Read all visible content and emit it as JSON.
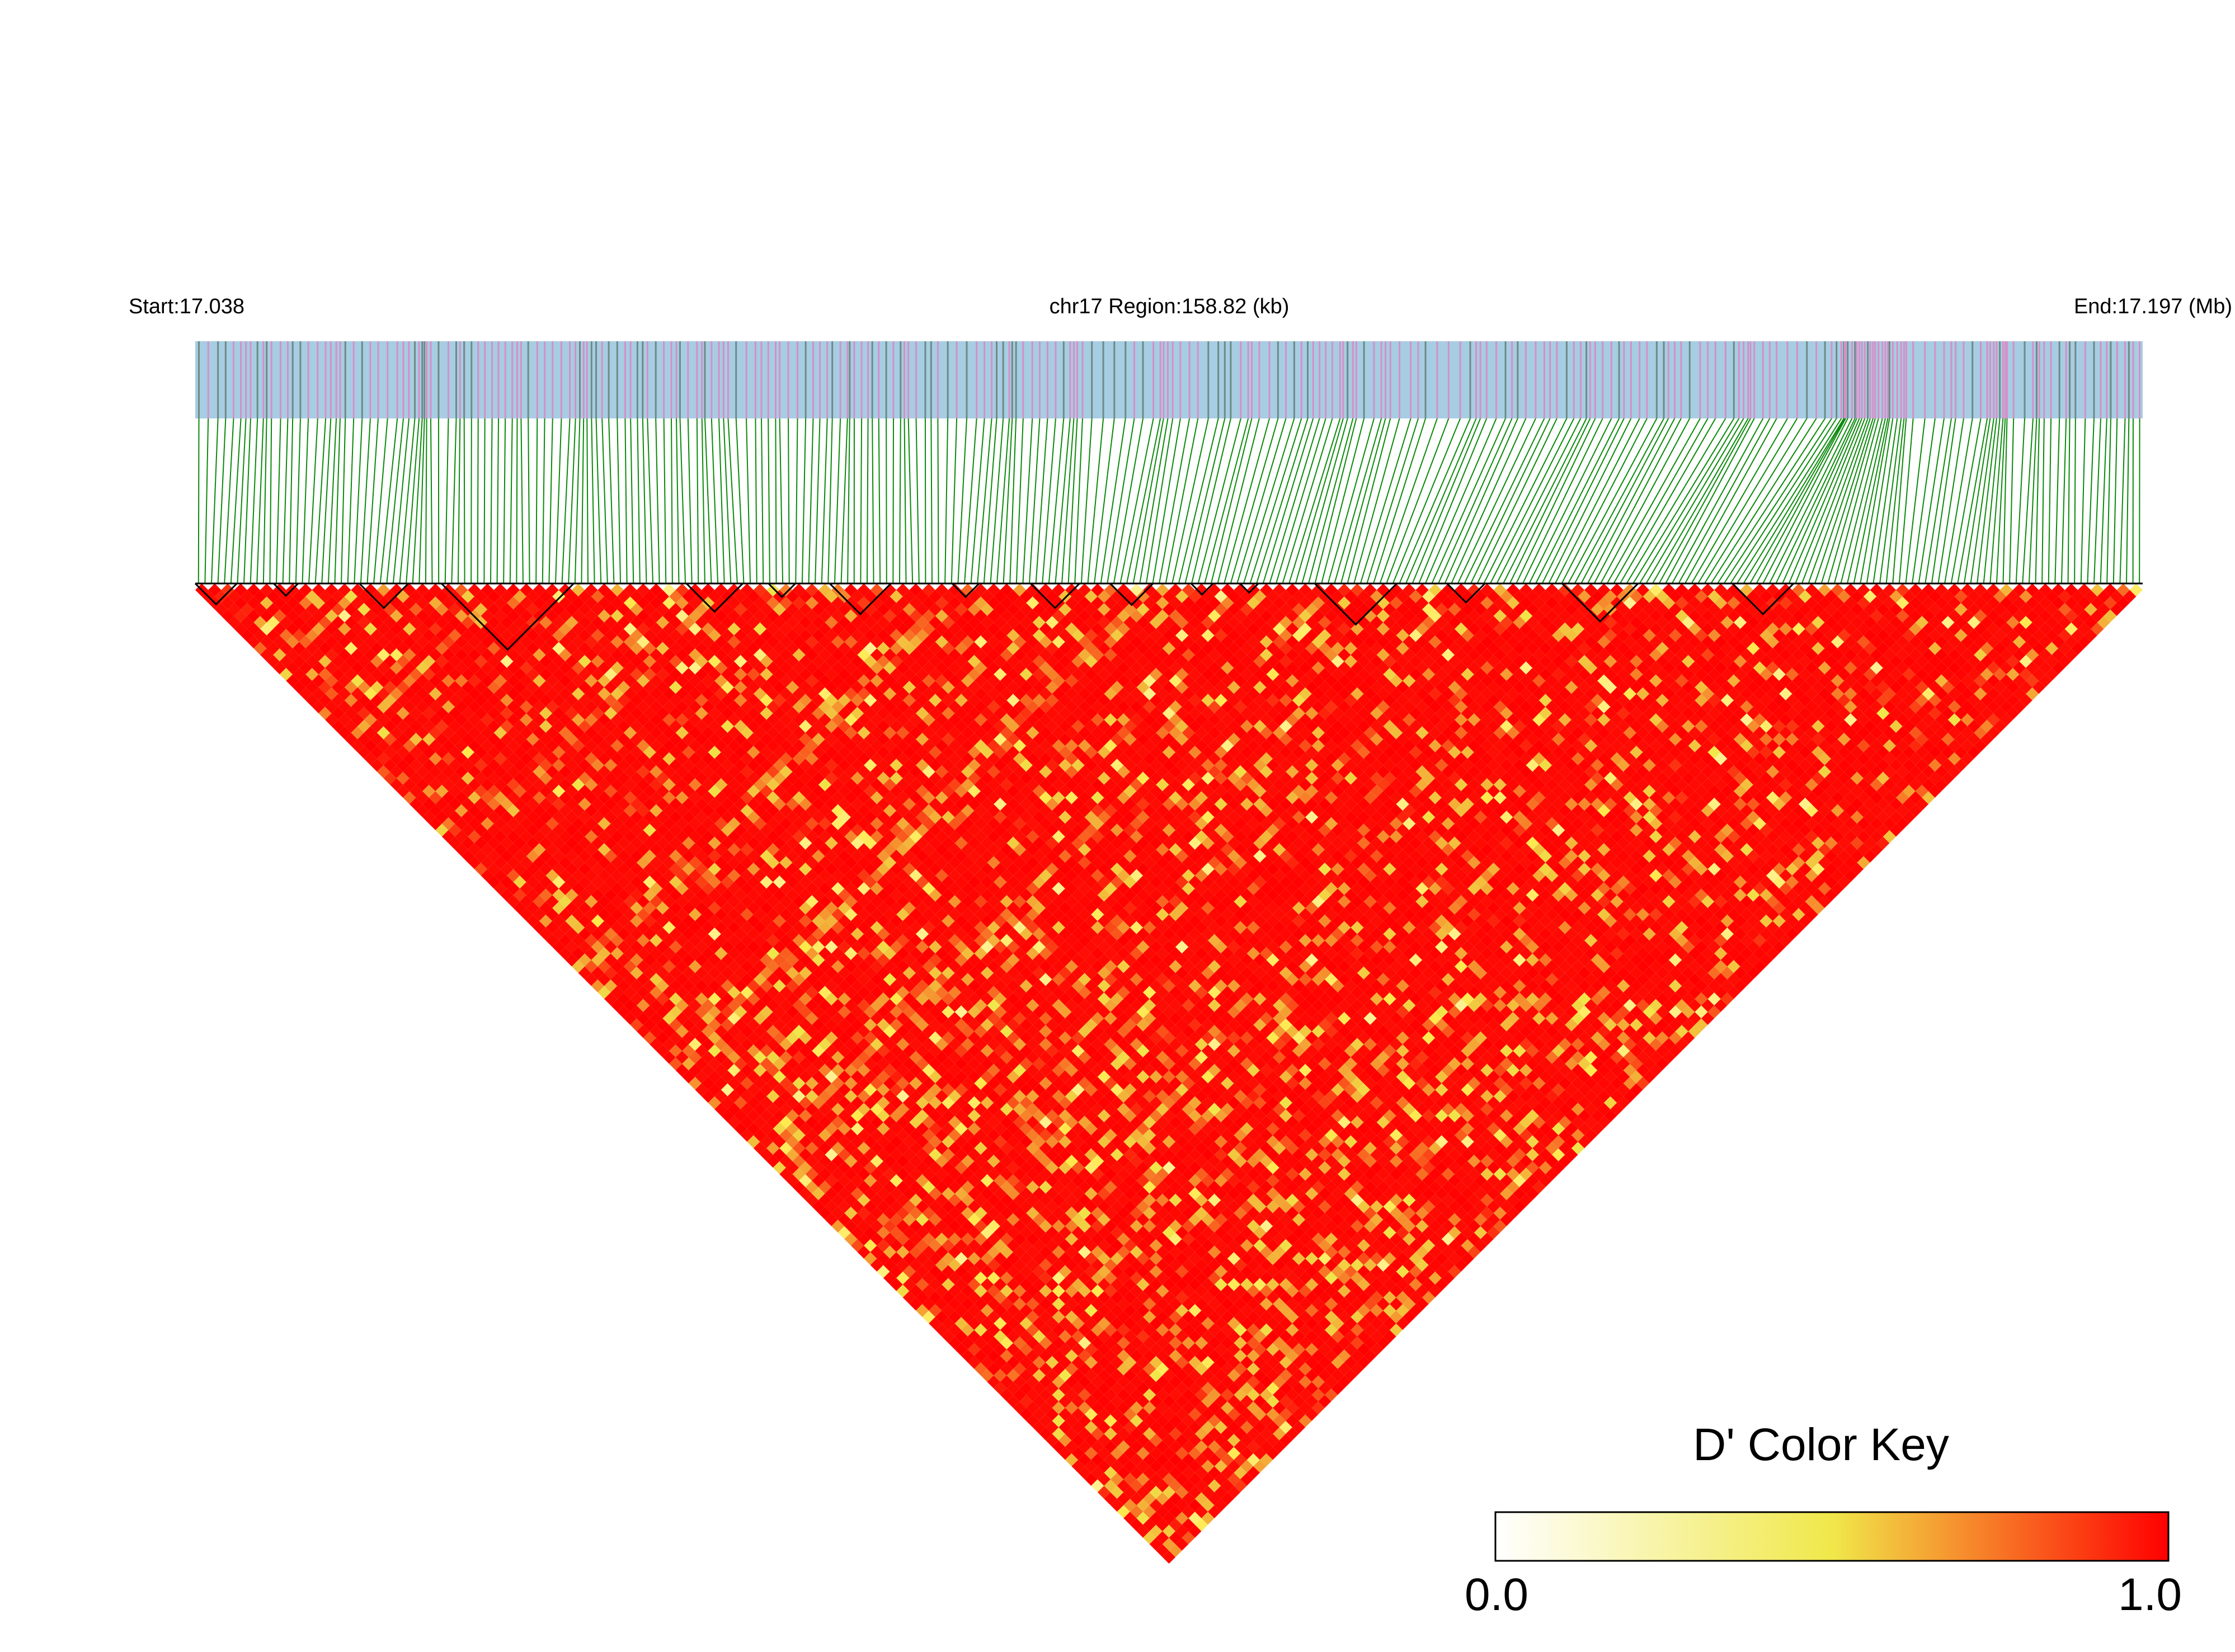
{
  "chart_data": {
    "type": "heatmap",
    "subtype": "linkage-disequilibrium-triangle",
    "chromosome": "chr17",
    "start_label": "Start:17.038",
    "region_label": "chr17 Region:158.82 (kb)",
    "end_label": "End:17.197 (Mb)",
    "start_mb": 17.038,
    "end_mb": 17.197,
    "region_kb": 158.82,
    "marker_count": 300,
    "color_key": {
      "title": "D' Color Key",
      "min_label": "0.0",
      "max_label": "1.0",
      "min": 0.0,
      "max": 1.0,
      "colors": [
        "#ffffff",
        "#f0e84a",
        "#ff0000"
      ]
    },
    "track_colors": {
      "background": "#a6cde2",
      "marker_pink": "#d68fc8",
      "marker_gray": "#6f8a86",
      "connector": "#0a8a0a",
      "block_outline": "#000000"
    },
    "haplotype_blocks": [
      {
        "start_mb": 17.038,
        "end_mb": 17.0414
      },
      {
        "start_mb": 17.0444,
        "end_mb": 17.0464
      },
      {
        "start_mb": 17.0514,
        "end_mb": 17.0554
      },
      {
        "start_mb": 17.0581,
        "end_mb": 17.0689
      },
      {
        "start_mb": 17.0781,
        "end_mb": 17.0827
      },
      {
        "start_mb": 17.0848,
        "end_mb": 17.087
      },
      {
        "start_mb": 17.0898,
        "end_mb": 17.0948
      },
      {
        "start_mb": 17.0998,
        "end_mb": 17.102
      },
      {
        "start_mb": 17.1062,
        "end_mb": 17.1102
      },
      {
        "start_mb": 17.1127,
        "end_mb": 17.1162
      },
      {
        "start_mb": 17.1193,
        "end_mb": 17.1211
      },
      {
        "start_mb": 17.1233,
        "end_mb": 17.1248
      },
      {
        "start_mb": 17.1294,
        "end_mb": 17.1361
      },
      {
        "start_mb": 17.1402,
        "end_mb": 17.1433
      },
      {
        "start_mb": 17.1496,
        "end_mb": 17.1558
      },
      {
        "start_mb": 17.1635,
        "end_mb": 17.1685
      }
    ]
  }
}
